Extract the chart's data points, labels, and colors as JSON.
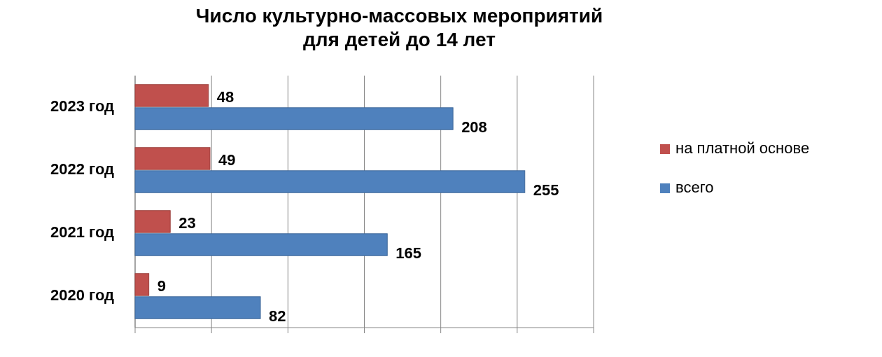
{
  "chart_data": {
    "type": "bar",
    "orientation": "horizontal",
    "title": "Число культурно-массовых мероприятий\nдля детей до 14 лет",
    "categories": [
      "2023 год",
      "2022 год",
      "2021 год",
      "2020 год"
    ],
    "series": [
      {
        "name": "на платной основе",
        "color": "#c0504d",
        "values": [
          48,
          49,
          23,
          9
        ]
      },
      {
        "name": "всего",
        "color": "#4f81bd",
        "values": [
          208,
          255,
          165,
          82
        ]
      }
    ],
    "xlim": [
      0,
      300
    ],
    "xticks": [
      {
        "value": 0,
        "label": null
      },
      {
        "value": 50,
        "label": null
      },
      {
        "value": 100,
        "label": null
      },
      {
        "value": 150,
        "label": null
      },
      {
        "value": 200,
        "label": null
      },
      {
        "value": 250,
        "label": null
      },
      {
        "value": 300,
        "label": null
      }
    ],
    "grid": "x",
    "tick_labels": "y",
    "data_labels": true,
    "legend": "right"
  }
}
